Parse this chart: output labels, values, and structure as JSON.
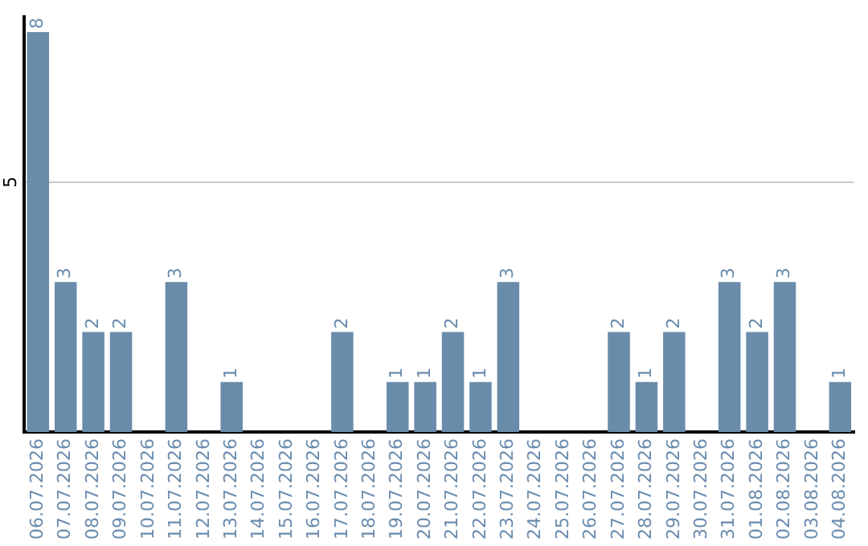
{
  "chart_data": {
    "type": "bar",
    "categories": [
      "06.07.2026",
      "07.07.2026",
      "08.07.2026",
      "09.07.2026",
      "10.07.2026",
      "11.07.2026",
      "12.07.2026",
      "13.07.2026",
      "14.07.2026",
      "15.07.2026",
      "16.07.2026",
      "17.07.2026",
      "18.07.2026",
      "19.07.2026",
      "20.07.2026",
      "21.07.2026",
      "22.07.2026",
      "23.07.2026",
      "24.07.2026",
      "25.07.2026",
      "26.07.2026",
      "27.07.2026",
      "28.07.2026",
      "29.07.2026",
      "30.07.2026",
      "31.07.2026",
      "01.08.2026",
      "02.08.2026",
      "03.08.2026",
      "04.08.2026"
    ],
    "values": [
      8,
      3,
      2,
      2,
      0,
      3,
      0,
      1,
      0,
      0,
      0,
      2,
      0,
      1,
      1,
      2,
      1,
      3,
      0,
      0,
      0,
      2,
      1,
      2,
      0,
      3,
      2,
      3,
      0,
      1
    ],
    "value_labels": [
      "8",
      "3",
      "2",
      "2",
      null,
      "3",
      null,
      "1",
      null,
      null,
      null,
      "2",
      null,
      "1",
      "1",
      "2",
      "1",
      "3",
      null,
      null,
      null,
      "2",
      "1",
      "2",
      null,
      "3",
      "2",
      "3",
      null,
      "1"
    ],
    "color": "#6a8cab",
    "ylim": [
      0,
      8.3
    ],
    "yticks": [
      5
    ],
    "grid": "y",
    "legend": false
  }
}
